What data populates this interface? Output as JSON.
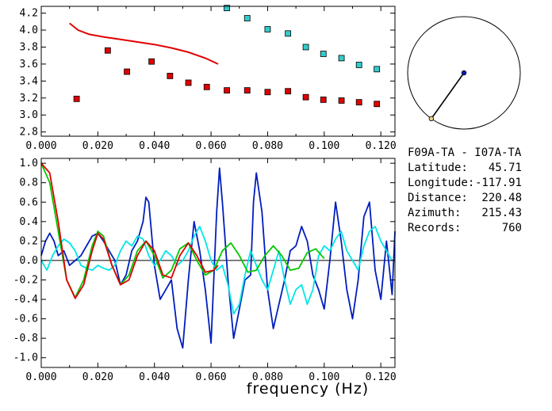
{
  "chart_data": [
    {
      "type": "scatter",
      "xlim": [
        0.0,
        0.125
      ],
      "ylim": [
        2.75,
        4.28
      ],
      "x_ticks": [
        "0.000",
        "0.020",
        "0.040",
        "0.060",
        "0.080",
        "0.100",
        "0.120"
      ],
      "y_ticks": [
        "2.8",
        "3.0",
        "3.2",
        "3.4",
        "3.6",
        "3.8",
        "4.0",
        "4.2"
      ],
      "grid": false,
      "series": [
        {
          "type": "scatter",
          "color": "#e00000",
          "marker": "square",
          "x": [
            0.0125,
            0.0235,
            0.0303,
            0.039,
            0.0455,
            0.052,
            0.0585,
            0.0656,
            0.0728,
            0.08,
            0.0872,
            0.0935,
            0.0997,
            0.1061,
            0.1123,
            0.1186
          ],
          "y": [
            3.19,
            3.76,
            3.51,
            3.63,
            3.46,
            3.38,
            3.33,
            3.29,
            3.29,
            3.27,
            3.28,
            3.21,
            3.18,
            3.17,
            3.15,
            3.13
          ]
        },
        {
          "type": "scatter",
          "color": "#33cccc",
          "marker": "square",
          "x": [
            0.0656,
            0.0728,
            0.08,
            0.0872,
            0.0935,
            0.0997,
            0.1061,
            0.1123,
            0.1186
          ],
          "y": [
            4.26,
            4.14,
            4.01,
            3.96,
            3.8,
            3.72,
            3.67,
            3.59,
            3.54
          ]
        },
        {
          "type": "line",
          "color": "#e00000",
          "x": [
            0.01,
            0.013,
            0.017,
            0.022,
            0.028,
            0.034,
            0.04,
            0.046,
            0.052,
            0.058,
            0.0625
          ],
          "y": [
            4.08,
            4.0,
            3.95,
            3.92,
            3.89,
            3.86,
            3.83,
            3.79,
            3.74,
            3.67,
            3.6
          ]
        }
      ]
    },
    {
      "type": "line",
      "xlabel": "frequency (Hz)",
      "xlim": [
        0.0,
        0.125
      ],
      "ylim": [
        -1.1,
        1.05
      ],
      "x_ticks": [
        "0.000",
        "0.020",
        "0.040",
        "0.060",
        "0.080",
        "0.100",
        "0.120"
      ],
      "y_ticks": [
        "1.0",
        "0.8",
        "0.6",
        "0.4",
        "0.2",
        "0.0",
        "-0.2",
        "-0.4",
        "-0.6",
        "-0.8",
        "-1.0"
      ],
      "grid": false,
      "series": [
        {
          "color": "#001ebe",
          "x": [
            0.0,
            0.0015,
            0.003,
            0.0045,
            0.006,
            0.008,
            0.01,
            0.012,
            0.014,
            0.016,
            0.018,
            0.02,
            0.022,
            0.024,
            0.026,
            0.028,
            0.03,
            0.032,
            0.034,
            0.036,
            0.037,
            0.038,
            0.04,
            0.042,
            0.044,
            0.046,
            0.048,
            0.05,
            0.052,
            0.054,
            0.056,
            0.058,
            0.06,
            0.062,
            0.063,
            0.064,
            0.066,
            0.068,
            0.07,
            0.072,
            0.074,
            0.075,
            0.076,
            0.078,
            0.08,
            0.082,
            0.084,
            0.086,
            0.088,
            0.09,
            0.092,
            0.094,
            0.096,
            0.098,
            0.1,
            0.102,
            0.104,
            0.106,
            0.108,
            0.11,
            0.112,
            0.114,
            0.116,
            0.118,
            0.12,
            0.122,
            0.124,
            0.125
          ],
          "y": [
            0.05,
            0.2,
            0.28,
            0.2,
            0.05,
            0.1,
            -0.05,
            0.0,
            0.05,
            0.15,
            0.25,
            0.28,
            0.2,
            0.1,
            0.0,
            -0.25,
            -0.15,
            0.1,
            0.2,
            0.4,
            0.65,
            0.6,
            -0.05,
            -0.4,
            -0.3,
            -0.2,
            -0.7,
            -0.9,
            -0.2,
            0.4,
            0.1,
            -0.3,
            -0.85,
            0.5,
            0.95,
            0.6,
            -0.2,
            -0.8,
            -0.5,
            -0.2,
            -0.15,
            0.6,
            0.9,
            0.5,
            -0.3,
            -0.7,
            -0.45,
            -0.2,
            0.1,
            0.15,
            0.35,
            0.2,
            -0.15,
            -0.3,
            -0.5,
            0.0,
            0.6,
            0.2,
            -0.3,
            -0.6,
            -0.2,
            0.45,
            0.6,
            -0.1,
            -0.4,
            0.2,
            -0.35,
            0.3
          ]
        },
        {
          "color": "#00e6e6",
          "x": [
            0.0,
            0.002,
            0.004,
            0.006,
            0.008,
            0.01,
            0.012,
            0.014,
            0.016,
            0.018,
            0.02,
            0.022,
            0.024,
            0.026,
            0.028,
            0.03,
            0.032,
            0.034,
            0.036,
            0.038,
            0.04,
            0.042,
            0.044,
            0.046,
            0.048,
            0.05,
            0.052,
            0.054,
            0.056,
            0.058,
            0.06,
            0.062,
            0.064,
            0.066,
            0.068,
            0.07,
            0.072,
            0.074,
            0.076,
            0.078,
            0.08,
            0.082,
            0.084,
            0.086,
            0.088,
            0.09,
            0.092,
            0.094,
            0.096,
            0.098,
            0.1,
            0.102,
            0.104,
            0.106,
            0.108,
            0.11,
            0.112,
            0.114,
            0.116,
            0.118,
            0.12,
            0.122,
            0.124
          ],
          "y": [
            0.0,
            -0.1,
            0.05,
            0.15,
            0.22,
            0.18,
            0.1,
            -0.05,
            -0.08,
            -0.1,
            -0.05,
            -0.08,
            -0.1,
            -0.05,
            0.1,
            0.2,
            0.15,
            0.25,
            0.22,
            0.05,
            -0.05,
            0.0,
            0.1,
            0.05,
            -0.05,
            0.0,
            0.1,
            0.25,
            0.35,
            0.2,
            0.0,
            -0.1,
            -0.05,
            -0.25,
            -0.55,
            -0.45,
            -0.15,
            0.1,
            -0.05,
            -0.2,
            -0.3,
            -0.1,
            0.1,
            -0.2,
            -0.45,
            -0.3,
            -0.25,
            -0.45,
            -0.3,
            0.05,
            0.15,
            0.1,
            0.22,
            0.3,
            0.1,
            0.0,
            -0.1,
            0.15,
            0.3,
            0.35,
            0.2,
            0.1,
            0.0
          ]
        },
        {
          "color": "#00c800",
          "x": [
            0.0,
            0.003,
            0.006,
            0.009,
            0.012,
            0.015,
            0.018,
            0.02,
            0.022,
            0.025,
            0.028,
            0.031,
            0.034,
            0.037,
            0.04,
            0.043,
            0.046,
            0.049,
            0.052,
            0.055,
            0.058,
            0.061,
            0.064,
            0.067,
            0.07,
            0.073,
            0.076,
            0.079,
            0.082,
            0.085,
            0.088,
            0.091,
            0.094,
            0.097,
            0.1
          ],
          "y": [
            1.0,
            0.8,
            0.3,
            -0.2,
            -0.38,
            -0.2,
            0.15,
            0.3,
            0.25,
            -0.05,
            -0.25,
            -0.15,
            0.1,
            0.2,
            0.05,
            -0.18,
            -0.1,
            0.12,
            0.18,
            0.0,
            -0.15,
            -0.1,
            0.1,
            0.18,
            0.05,
            -0.12,
            -0.1,
            0.05,
            0.15,
            0.05,
            -0.1,
            -0.08,
            0.08,
            0.12,
            0.02
          ]
        },
        {
          "color": "#e00000",
          "x": [
            0.0,
            0.003,
            0.006,
            0.009,
            0.012,
            0.015,
            0.018,
            0.02,
            0.022,
            0.025,
            0.028,
            0.031,
            0.034,
            0.037,
            0.04,
            0.043,
            0.046,
            0.049,
            0.052,
            0.055,
            0.058,
            0.061,
            0.0625
          ],
          "y": [
            1.0,
            0.9,
            0.4,
            -0.2,
            -0.39,
            -0.25,
            0.1,
            0.28,
            0.22,
            -0.05,
            -0.25,
            -0.2,
            0.05,
            0.2,
            0.1,
            -0.15,
            -0.18,
            0.05,
            0.18,
            0.05,
            -0.12,
            -0.1,
            -0.05
          ]
        }
      ]
    }
  ],
  "station": {
    "pair": "F09A-TA - I07A-TA",
    "rows": [
      {
        "label": "Latitude:",
        "value": "45.71"
      },
      {
        "label": "Longitude:",
        "value": "-117.91"
      },
      {
        "label": "Distance:",
        "value": "220.48"
      },
      {
        "label": "Azimuth:",
        "value": "215.43"
      },
      {
        "label": "Records:",
        "value": "760"
      }
    ],
    "azimuth_deg": 215.43
  },
  "colors": {
    "blue": "#001ebe",
    "cyan": "#00e6e6",
    "green": "#00c800",
    "red": "#e00000"
  }
}
